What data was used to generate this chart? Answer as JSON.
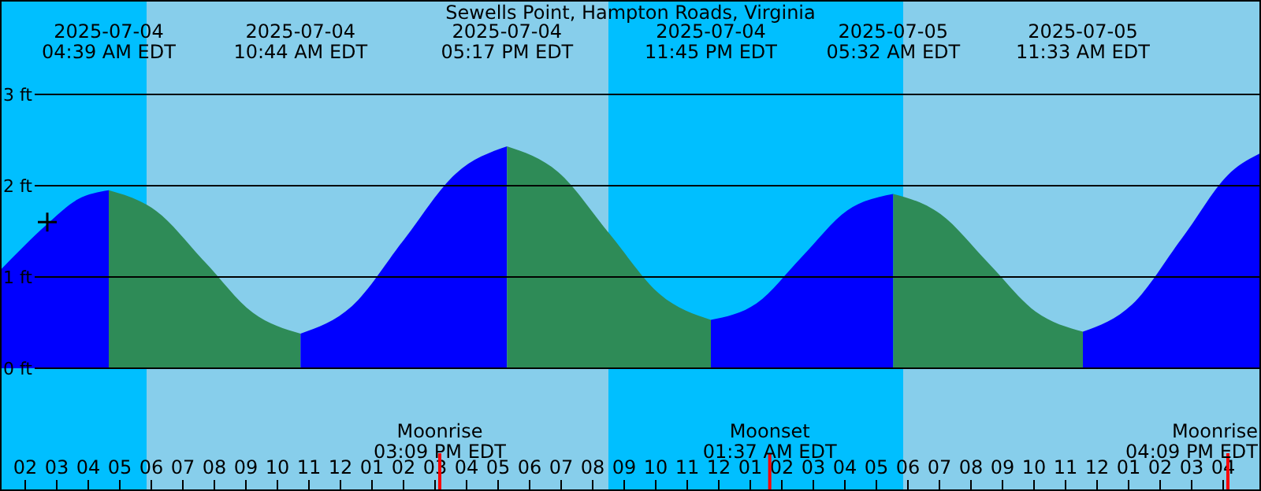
{
  "chart_data": {
    "type": "area",
    "title": "Sewells Point, Hampton Roads, Virginia",
    "xlim": [
      "2025-07-04T01:12",
      "2025-07-05T17:12"
    ],
    "xticks": [
      {
        "value": "2025-07-04T02:00",
        "label": "02"
      },
      {
        "value": "2025-07-04T03:00",
        "label": "03"
      },
      {
        "value": "2025-07-04T04:00",
        "label": "04"
      },
      {
        "value": "2025-07-04T05:00",
        "label": "05"
      },
      {
        "value": "2025-07-04T06:00",
        "label": "06"
      },
      {
        "value": "2025-07-04T07:00",
        "label": "07"
      },
      {
        "value": "2025-07-04T08:00",
        "label": "08"
      },
      {
        "value": "2025-07-04T09:00",
        "label": "09"
      },
      {
        "value": "2025-07-04T10:00",
        "label": "10"
      },
      {
        "value": "2025-07-04T11:00",
        "label": "11"
      },
      {
        "value": "2025-07-04T12:00",
        "label": "12"
      },
      {
        "value": "2025-07-04T13:00",
        "label": "01"
      },
      {
        "value": "2025-07-04T14:00",
        "label": "02"
      },
      {
        "value": "2025-07-04T15:00",
        "label": "03"
      },
      {
        "value": "2025-07-04T16:00",
        "label": "04"
      },
      {
        "value": "2025-07-04T17:00",
        "label": "05"
      },
      {
        "value": "2025-07-04T18:00",
        "label": "06"
      },
      {
        "value": "2025-07-04T19:00",
        "label": "07"
      },
      {
        "value": "2025-07-04T20:00",
        "label": "08"
      },
      {
        "value": "2025-07-04T21:00",
        "label": "09"
      },
      {
        "value": "2025-07-04T22:00",
        "label": "10"
      },
      {
        "value": "2025-07-04T23:00",
        "label": "11"
      },
      {
        "value": "2025-07-05T00:00",
        "label": "12"
      },
      {
        "value": "2025-07-05T01:00",
        "label": "01"
      },
      {
        "value": "2025-07-05T02:00",
        "label": "02"
      },
      {
        "value": "2025-07-05T03:00",
        "label": "03"
      },
      {
        "value": "2025-07-05T04:00",
        "label": "04"
      },
      {
        "value": "2025-07-05T05:00",
        "label": "05"
      },
      {
        "value": "2025-07-05T06:00",
        "label": "06"
      },
      {
        "value": "2025-07-05T07:00",
        "label": "07"
      },
      {
        "value": "2025-07-05T08:00",
        "label": "08"
      },
      {
        "value": "2025-07-05T09:00",
        "label": "09"
      },
      {
        "value": "2025-07-05T10:00",
        "label": "10"
      },
      {
        "value": "2025-07-05T11:00",
        "label": "11"
      },
      {
        "value": "2025-07-05T12:00",
        "label": "12"
      },
      {
        "value": "2025-07-05T13:00",
        "label": "01"
      },
      {
        "value": "2025-07-05T14:00",
        "label": "02"
      },
      {
        "value": "2025-07-05T15:00",
        "label": "03"
      },
      {
        "value": "2025-07-05T16:00",
        "label": "04"
      }
    ],
    "ylim": [
      -1.345,
      4.034
    ],
    "yticks": [
      {
        "value": 0,
        "label": "0 ft"
      },
      {
        "value": 1,
        "label": "1 ft"
      },
      {
        "value": 2,
        "label": "2 ft"
      },
      {
        "value": 3,
        "label": "3 ft"
      }
    ],
    "grid": "y",
    "legend": false,
    "bands": [
      {
        "axis": "x",
        "from": "2025-07-04T01:12",
        "to": "2025-07-04T05:51",
        "color": "#00bfff"
      },
      {
        "axis": "x",
        "from": "2025-07-04T05:51",
        "to": "2025-07-04T20:30",
        "color": "#87ceeb"
      },
      {
        "axis": "x",
        "from": "2025-07-04T20:30",
        "to": "2025-07-05T05:51",
        "color": "#00bfff"
      },
      {
        "axis": "x",
        "from": "2025-07-05T05:51",
        "to": "2025-07-05T17:12",
        "color": "#87ceeb"
      }
    ],
    "series": [
      {
        "color": "#0000ff",
        "x": [
          "2025-07-04T01:12",
          "2025-07-04T02:42",
          "2025-07-04T03:40",
          "2025-07-04T04:39"
        ],
        "values": [
          1.07,
          1.58,
          1.85,
          1.95
        ]
      },
      {
        "color": "#2e8b57",
        "x": [
          "2025-07-04T04:39",
          "2025-07-04T06:10",
          "2025-07-04T07:41",
          "2025-07-04T09:13",
          "2025-07-04T10:44"
        ],
        "values": [
          1.95,
          1.72,
          1.17,
          0.61,
          0.38
        ]
      },
      {
        "color": "#0000ff",
        "x": [
          "2025-07-04T10:44",
          "2025-07-04T12:22",
          "2025-07-04T14:01",
          "2025-07-04T15:39",
          "2025-07-04T17:17"
        ],
        "values": [
          0.38,
          0.68,
          1.41,
          2.13,
          2.43
        ]
      },
      {
        "color": "#2e8b57",
        "x": [
          "2025-07-04T17:17",
          "2025-07-04T18:54",
          "2025-07-04T20:31",
          "2025-07-04T22:08",
          "2025-07-04T23:45"
        ],
        "values": [
          2.43,
          2.15,
          1.48,
          0.81,
          0.53
        ]
      },
      {
        "color": "#0000ff",
        "x": [
          "2025-07-04T23:45",
          "2025-07-05T01:12",
          "2025-07-05T02:38",
          "2025-07-05T04:05",
          "2025-07-05T05:32"
        ],
        "values": [
          0.53,
          0.71,
          1.22,
          1.73,
          1.91
        ]
      },
      {
        "color": "#2e8b57",
        "x": [
          "2025-07-05T05:32",
          "2025-07-05T07:02",
          "2025-07-05T08:32",
          "2025-07-05T10:03",
          "2025-07-05T11:33"
        ],
        "values": [
          1.91,
          1.69,
          1.16,
          0.62,
          0.4
        ]
      },
      {
        "color": "#0000ff",
        "x": [
          "2025-07-05T11:33",
          "2025-07-05T13:07",
          "2025-07-05T14:41",
          "2025-07-05T16:15",
          "2025-07-05T17:12"
        ],
        "values": [
          0.4,
          0.7,
          1.42,
          2.15,
          2.36
        ]
      },
      {
        "type": "scatter",
        "color": "#000000",
        "marker": "cross",
        "x": [
          "2025-07-04T02:42"
        ],
        "values": [
          1.6
        ]
      }
    ],
    "annotations": [
      "2025-07-04\n04:39 AM EDT",
      "2025-07-04\n10:44 AM EDT",
      "2025-07-04\n05:17 PM EDT",
      "2025-07-04\n11:45 PM EDT",
      "2025-07-05\n05:32 AM EDT",
      "2025-07-05\n11:33 AM EDT"
    ],
    "ref_lines": [
      {
        "axis": "x",
        "value": "2025-07-04T15:09",
        "label": "Moonrise\n03:09 PM EDT",
        "color": "#ff0000"
      },
      {
        "axis": "x",
        "value": "2025-07-05T01:37",
        "label": "Moonset\n01:37 AM EDT",
        "color": "#ff0000"
      },
      {
        "axis": "x",
        "value": "2025-07-05T16:09",
        "label": "Moonrise\n04:09 PM EDT",
        "color": "#ff0000"
      }
    ]
  }
}
